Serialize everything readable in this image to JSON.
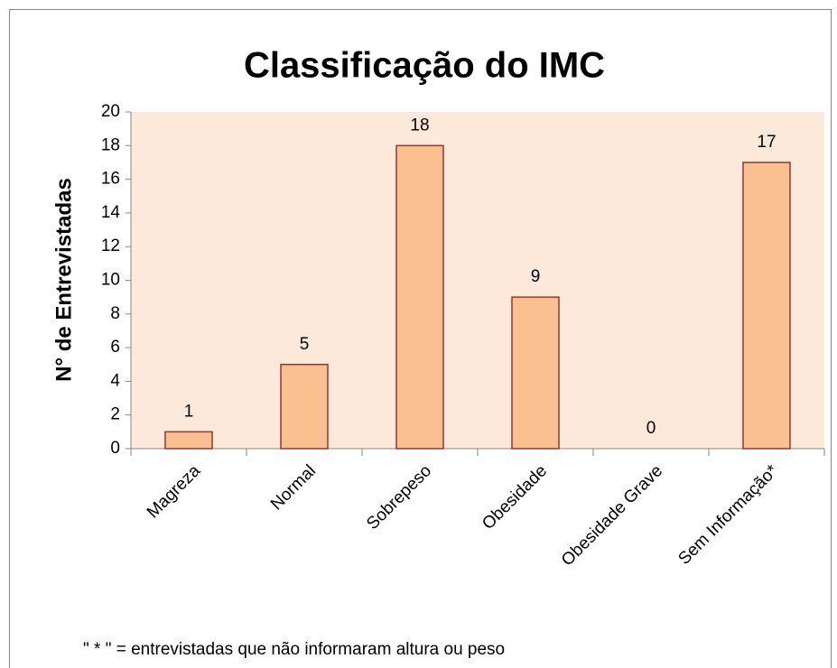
{
  "chart_data": {
    "type": "bar",
    "title": "Classificação do IMC",
    "y_label": "N°  de Entrevistadas",
    "categories": [
      "Magreza",
      "Normal",
      "Sobrepeso",
      "Obesidade",
      "Obesidade Grave",
      "Sem Informação*"
    ],
    "values": [
      1,
      5,
      18,
      9,
      0,
      17
    ],
    "color": "#fac090",
    "edge_color": "#943634",
    "plot_background": "#fde9d9",
    "ylim": [
      0,
      20
    ],
    "yticks": [
      0,
      2,
      4,
      6,
      8,
      10,
      12,
      14,
      16,
      18,
      20
    ],
    "grid": false,
    "note": "\" * \" = entrevistadas que não informaram altura ou peso"
  }
}
